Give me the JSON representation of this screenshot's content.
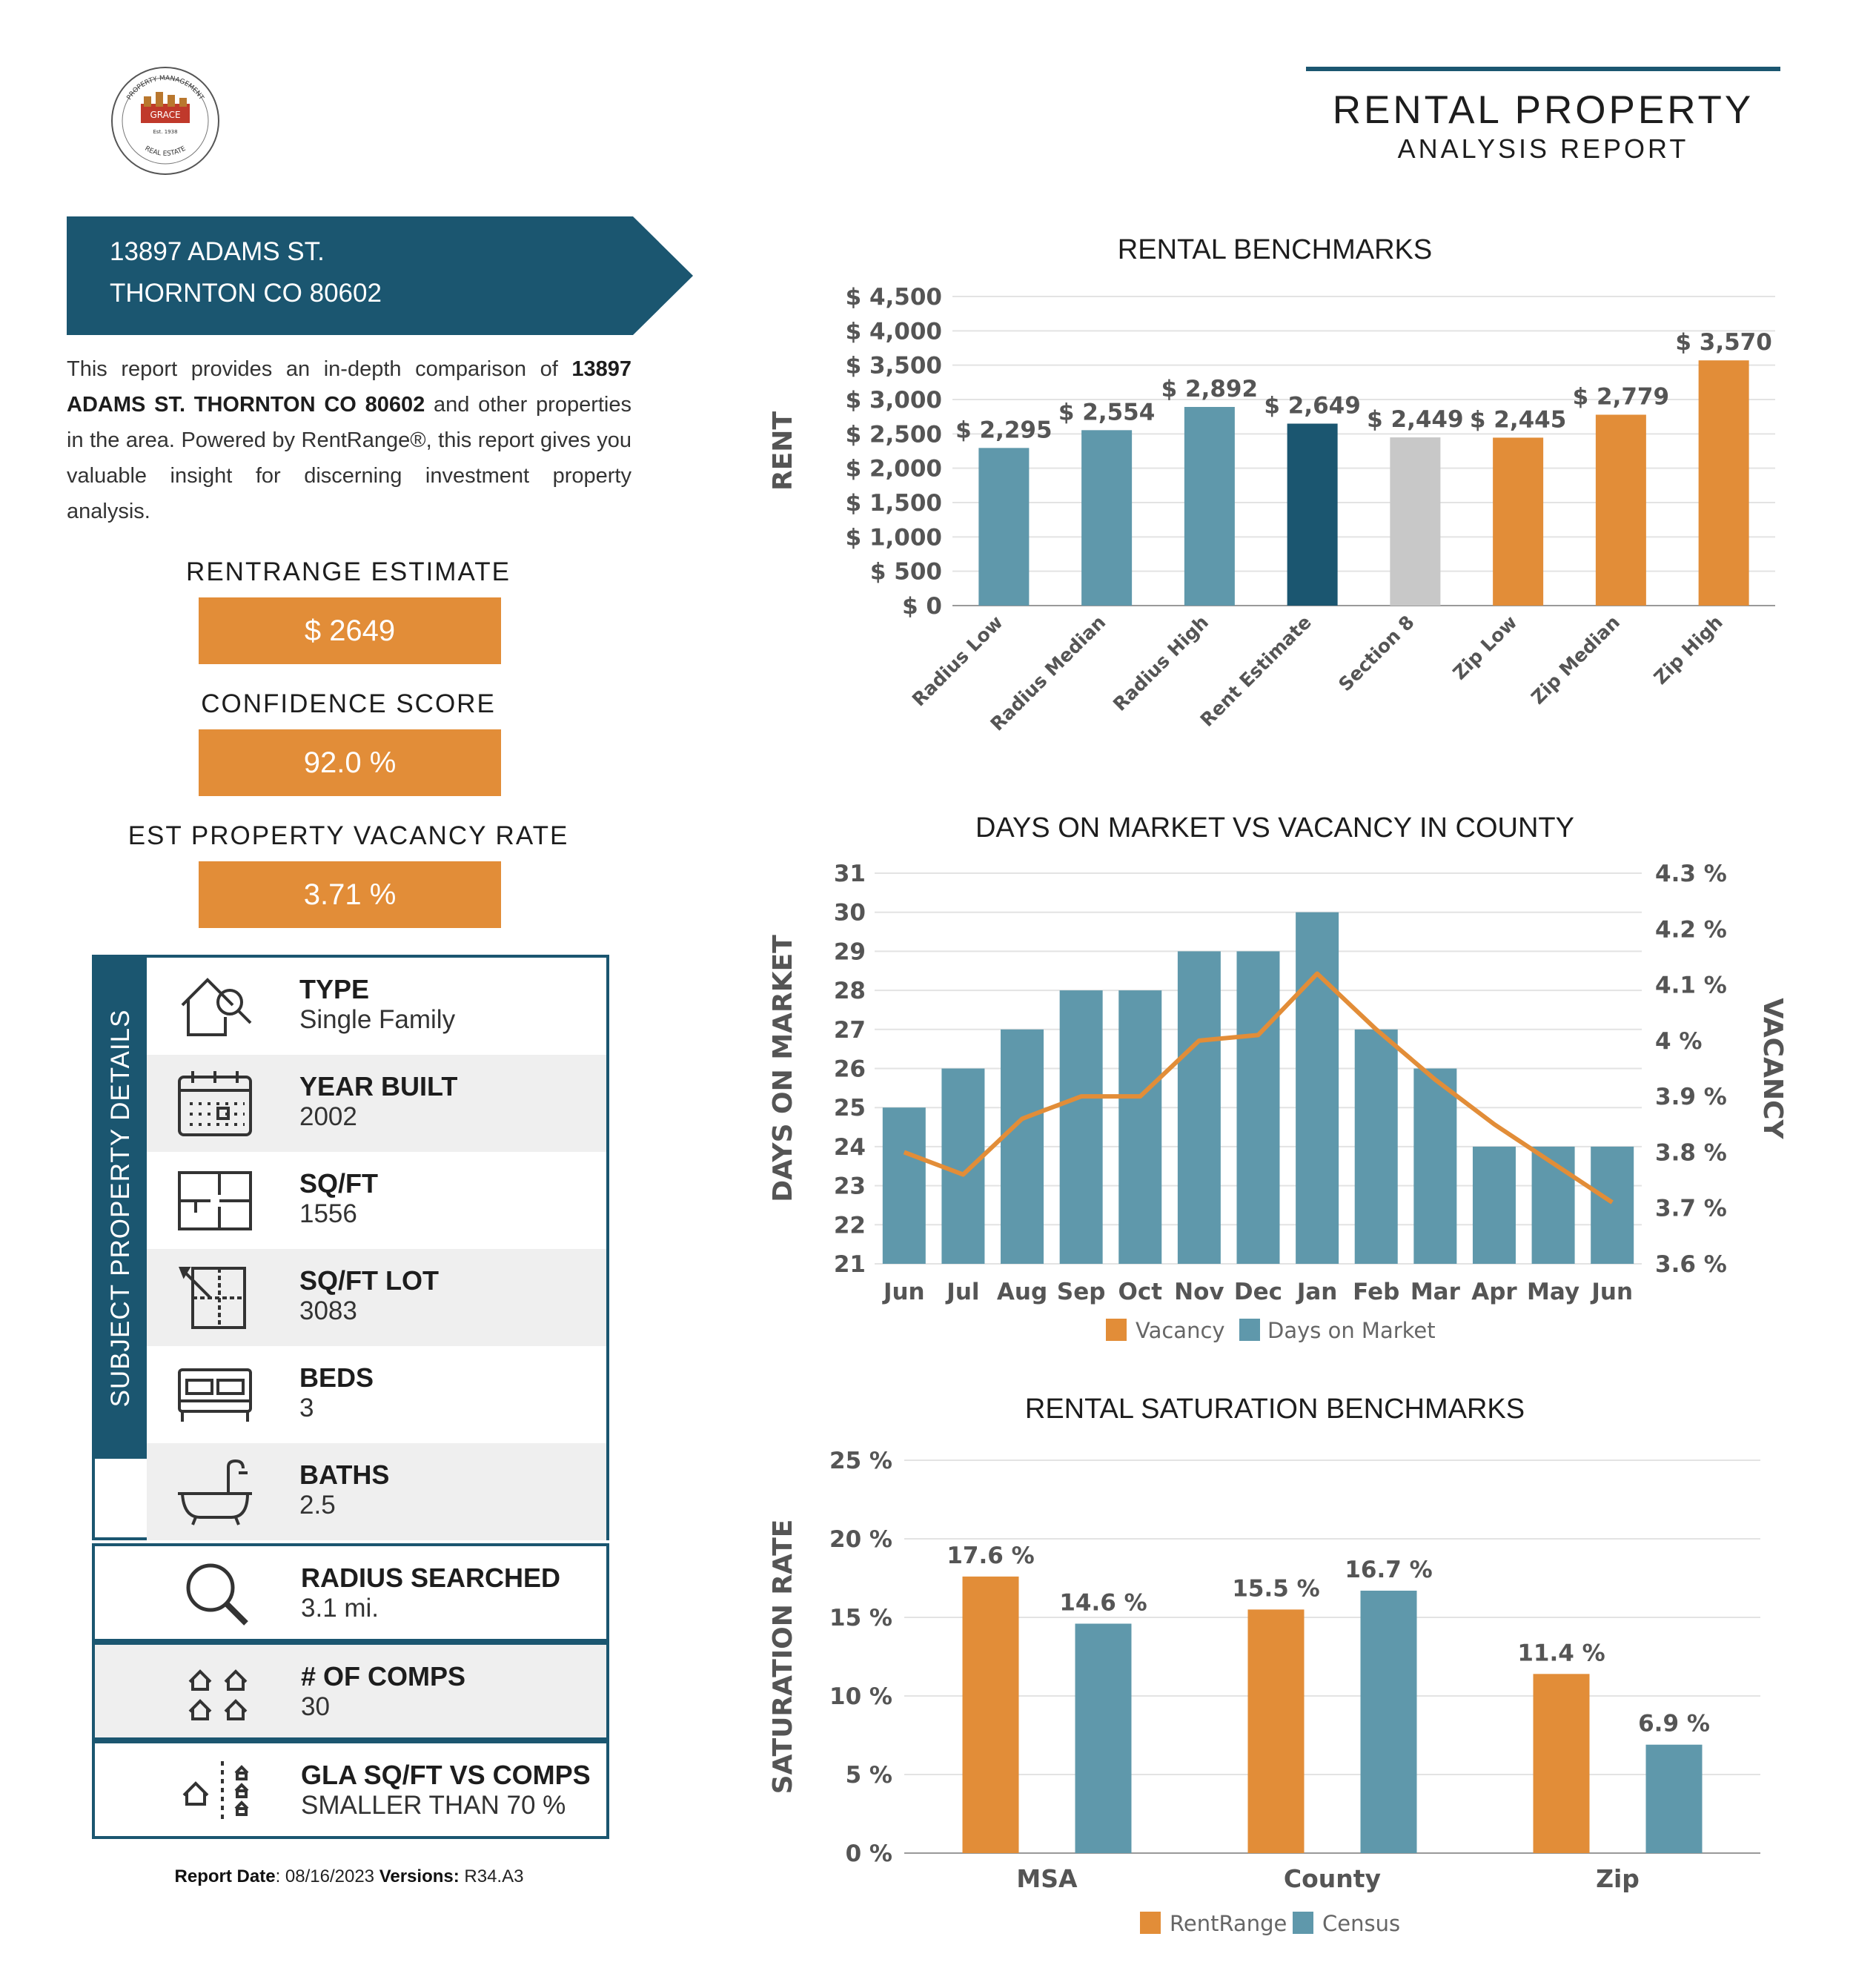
{
  "logo": {
    "top_text": "PROPERTY MANAGEMENT",
    "name": "GRACE",
    "est": "Est. 1938",
    "bottom_text": "REAL ESTATE"
  },
  "header": {
    "title": "RENTAL PROPERTY",
    "subtitle": "ANALYSIS REPORT"
  },
  "address": {
    "line1": "13897 ADAMS ST.",
    "line2": "THORNTON CO 80602"
  },
  "intro": {
    "before": "This report provides an in-depth comparison of ",
    "bold": "13897 ADAMS ST. THORNTON CO 80602",
    "after": " and other properties in the area. Powered by RentRange®, this report gives you valuable insight for discerning investment property analysis."
  },
  "metrics": [
    {
      "label": "RENTRANGE ESTIMATE",
      "value": "$ 2649"
    },
    {
      "label": "CONFIDENCE SCORE",
      "value": "92.0 %"
    },
    {
      "label": "EST PROPERTY VACANCY RATE",
      "value": "3.71 %"
    }
  ],
  "details": {
    "section_label": "SUBJECT PROPERTY DETAILS",
    "rows": [
      {
        "icon": "house-search-icon",
        "title": "TYPE",
        "value": "Single Family"
      },
      {
        "icon": "calendar-icon",
        "title": "YEAR BUILT",
        "value": "2002"
      },
      {
        "icon": "floorplan-icon",
        "title": "SQ/FT",
        "value": "1556"
      },
      {
        "icon": "lot-plan-icon",
        "title": "SQ/FT LOT",
        "value": "3083"
      },
      {
        "icon": "bed-icon",
        "title": "BEDS",
        "value": "3"
      },
      {
        "icon": "bathtub-icon",
        "title": "BATHS",
        "value": "2.5"
      }
    ],
    "extra": [
      {
        "icon": "magnifier-icon",
        "title": "RADIUS SEARCHED",
        "value": "3.1 mi."
      },
      {
        "icon": "houses-icon",
        "title": "# OF COMPS",
        "value": "30"
      },
      {
        "icon": "house-compare-icon",
        "title": "GLA SQ/FT VS COMPS",
        "value": "SMALLER THAN 70 %"
      }
    ]
  },
  "footer": {
    "date_label": "Report Date",
    "date": ": 08/16/2023 ",
    "version_label": "Versions:",
    "version": " R34.A3"
  },
  "colors": {
    "navy": "#1b5670",
    "teal": "#5f98ab",
    "orange": "#e28d38",
    "gray": "#c8c8c8"
  },
  "chart_data": [
    {
      "type": "bar",
      "title": "RENTAL BENCHMARKS",
      "ylabel": "RENT",
      "ylim": [
        0,
        4500
      ],
      "yticks": [
        "$ 0",
        "$ 500",
        "$ 1,000",
        "$ 1,500",
        "$ 2,000",
        "$ 2,500",
        "$ 3,000",
        "$ 3,500",
        "$ 4,000",
        "$ 4,500"
      ],
      "categories": [
        "Radius Low",
        "Radius Median",
        "Radius High",
        "Rent Estimate",
        "Section 8",
        "Zip Low",
        "Zip Median",
        "Zip High"
      ],
      "values": [
        2295,
        2554,
        2892,
        2649,
        2449,
        2445,
        2779,
        3570
      ],
      "labels": [
        "$ 2,295",
        "$ 2,554",
        "$ 2,892",
        "$ 2,649",
        "$ 2,449",
        "$ 2,445",
        "$ 2,779",
        "$ 3,570"
      ],
      "bar_colors": [
        "#5f98ab",
        "#5f98ab",
        "#5f98ab",
        "#1b5670",
        "#c8c8c8",
        "#e28d38",
        "#e28d38",
        "#e28d38"
      ]
    },
    {
      "type": "bar+line",
      "title": "DAYS ON MARKET VS VACANCY IN COUNTY",
      "ylabel": "DAYS ON MARKET",
      "y2label": "VACANCY",
      "ylim": [
        21,
        31
      ],
      "y2lim": [
        3.6,
        4.3
      ],
      "yticks": [
        "21",
        "22",
        "23",
        "24",
        "25",
        "26",
        "27",
        "28",
        "29",
        "30",
        "31"
      ],
      "y2ticks": [
        "3.6 %",
        "3.7 %",
        "3.8 %",
        "3.9 %",
        "4 %",
        "4.1 %",
        "4.2 %",
        "4.3 %"
      ],
      "categories": [
        "Jun",
        "Jul",
        "Aug",
        "Sep",
        "Oct",
        "Nov",
        "Dec",
        "Jan",
        "Feb",
        "Mar",
        "Apr",
        "May",
        "Jun"
      ],
      "series": [
        {
          "name": "Days on Market",
          "kind": "bar",
          "color": "#5f98ab",
          "values": [
            25,
            26,
            27,
            28,
            28,
            29,
            29,
            30,
            27,
            26,
            24,
            24,
            24
          ]
        },
        {
          "name": "Vacancy",
          "kind": "line",
          "color": "#e28d38",
          "values": [
            3.8,
            3.76,
            3.86,
            3.9,
            3.9,
            4.0,
            4.01,
            4.12,
            4.02,
            3.93,
            3.85,
            3.78,
            3.71
          ]
        }
      ],
      "legend": [
        "Vacancy",
        "Days on Market"
      ]
    },
    {
      "type": "bar",
      "title": "RENTAL SATURATION BENCHMARKS",
      "ylabel": "SATURATION RATE",
      "ylim": [
        0,
        25
      ],
      "yticks": [
        "0 %",
        "5 %",
        "10 %",
        "15 %",
        "20 %",
        "25 %"
      ],
      "categories": [
        "MSA",
        "County",
        "Zip"
      ],
      "series": [
        {
          "name": "RentRange",
          "color": "#e28d38",
          "values": [
            17.6,
            15.5,
            11.4
          ],
          "labels": [
            "17.6 %",
            "15.5 %",
            "11.4 %"
          ]
        },
        {
          "name": "Census",
          "color": "#5f98ab",
          "values": [
            14.6,
            16.7,
            6.9
          ],
          "labels": [
            "14.6 %",
            "16.7 %",
            "6.9 %"
          ]
        }
      ],
      "legend": [
        "RentRange",
        "Census"
      ]
    }
  ]
}
